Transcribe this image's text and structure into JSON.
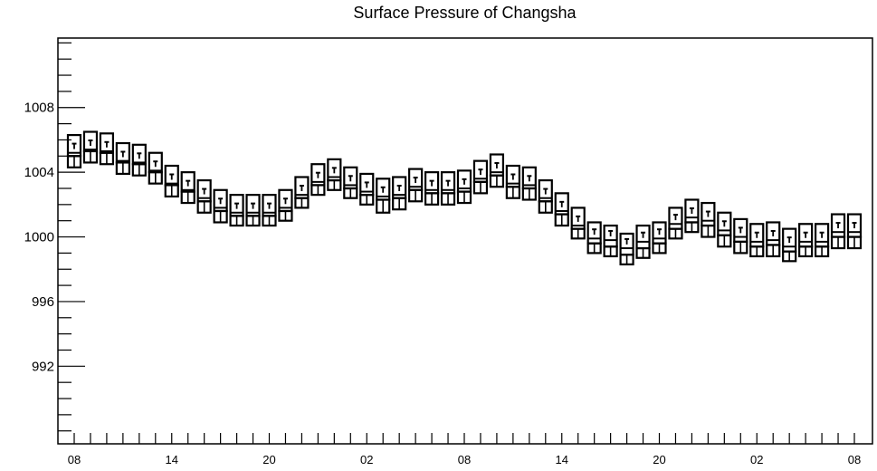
{
  "chart_data": {
    "type": "box",
    "title": "Surface Pressure of Changsha",
    "xlabel": "",
    "ylabel": "",
    "ylim": [
      987.2,
      1012.3
    ],
    "yticks": [
      992,
      996,
      1000,
      1004,
      1008
    ],
    "x_tick_labels": [
      "08",
      "14",
      "20",
      "02",
      "08",
      "14",
      "20",
      "02",
      "08"
    ],
    "grid": false,
    "series": [
      {
        "hours": [
          0,
          3,
          6,
          9,
          12,
          15,
          18,
          21,
          24,
          27,
          30,
          33,
          36,
          39,
          42,
          45,
          48,
          51,
          54,
          57,
          60,
          63,
          66,
          69,
          72,
          75,
          78,
          81,
          84,
          87,
          90,
          93,
          96,
          99,
          102,
          105,
          108,
          111,
          114,
          117,
          120,
          123,
          126,
          129,
          132,
          135,
          138,
          141,
          144
        ],
        "max": [
          1006.3,
          1006.5,
          1006.4,
          1005.8,
          1005.7,
          1005.2,
          1004.4,
          1004.0,
          1003.5,
          1002.9,
          1002.6,
          1002.6,
          1002.6,
          1002.9,
          1003.7,
          1004.5,
          1004.8,
          1004.3,
          1003.9,
          1003.6,
          1003.7,
          1004.2,
          1004.0,
          1004.0,
          1004.1,
          1004.7,
          1005.1,
          1004.4,
          1004.3,
          1003.5,
          1002.7,
          1001.8,
          1000.9,
          1000.7,
          1000.2,
          1000.7,
          1000.9,
          1001.8,
          1002.3,
          1002.1,
          1001.5,
          1001.1,
          1000.8,
          1000.9,
          1000.5,
          1000.8,
          1000.8,
          1001.4,
          1001.4
        ],
        "q3": [
          1005.2,
          1005.4,
          1005.3,
          1004.7,
          1004.6,
          1004.1,
          1003.3,
          1002.9,
          1002.4,
          1001.8,
          1001.5,
          1001.5,
          1001.5,
          1001.8,
          1002.6,
          1003.4,
          1003.7,
          1003.2,
          1002.8,
          1002.5,
          1002.6,
          1003.1,
          1002.9,
          1002.9,
          1003.0,
          1003.6,
          1004.0,
          1003.3,
          1003.2,
          1002.4,
          1001.6,
          1000.7,
          999.9,
          999.8,
          999.3,
          999.7,
          999.9,
          1000.8,
          1001.2,
          1001.0,
          1000.4,
          1000.0,
          999.7,
          999.8,
          999.4,
          999.7,
          999.7,
          1000.3,
          1000.3
        ],
        "median": [
          1005.6,
          1005.8,
          1005.7,
          1005.1,
          1005.0,
          1004.5,
          1003.7,
          1003.3,
          1002.8,
          1002.2,
          1001.9,
          1001.9,
          1001.9,
          1002.2,
          1003.0,
          1003.8,
          1004.1,
          1003.6,
          1003.2,
          1002.9,
          1003.0,
          1003.5,
          1003.3,
          1003.3,
          1003.4,
          1004.0,
          1004.4,
          1003.7,
          1003.6,
          1002.8,
          1002.0,
          1001.1,
          1000.3,
          1000.2,
          999.7,
          1000.1,
          1000.3,
          1001.2,
          1001.6,
          1001.4,
          1000.8,
          1000.4,
          1000.1,
          1000.2,
          999.8,
          1000.1,
          1000.1,
          1000.7,
          1000.7
        ],
        "q1": [
          1005.0,
          1005.3,
          1005.2,
          1004.6,
          1004.5,
          1004.0,
          1003.2,
          1002.8,
          1002.2,
          1001.6,
          1001.3,
          1001.3,
          1001.3,
          1001.6,
          1002.4,
          1003.2,
          1003.5,
          1003.0,
          1002.6,
          1002.3,
          1002.4,
          1002.9,
          1002.7,
          1002.7,
          1002.8,
          1003.4,
          1003.8,
          1003.1,
          1003.0,
          1002.2,
          1001.4,
          1000.5,
          999.6,
          999.4,
          998.9,
          999.3,
          999.6,
          1000.5,
          1000.9,
          1000.7,
          1000.1,
          999.7,
          999.4,
          999.5,
          999.1,
          999.4,
          999.4,
          1000.0,
          1000.0
        ],
        "min": [
          1004.3,
          1004.6,
          1004.5,
          1003.9,
          1003.8,
          1003.3,
          1002.5,
          1002.1,
          1001.5,
          1000.9,
          1000.7,
          1000.7,
          1000.7,
          1001.0,
          1001.8,
          1002.6,
          1002.9,
          1002.4,
          1002.0,
          1001.5,
          1001.7,
          1002.2,
          1002.0,
          1002.0,
          1002.1,
          1002.7,
          1003.1,
          1002.4,
          1002.3,
          1001.5,
          1000.7,
          999.9,
          999.0,
          998.8,
          998.3,
          998.7,
          999.0,
          999.9,
          1000.3,
          1000.0,
          999.4,
          999.0,
          998.8,
          998.8,
          998.5,
          998.8,
          998.8,
          999.3,
          999.3
        ]
      }
    ]
  }
}
